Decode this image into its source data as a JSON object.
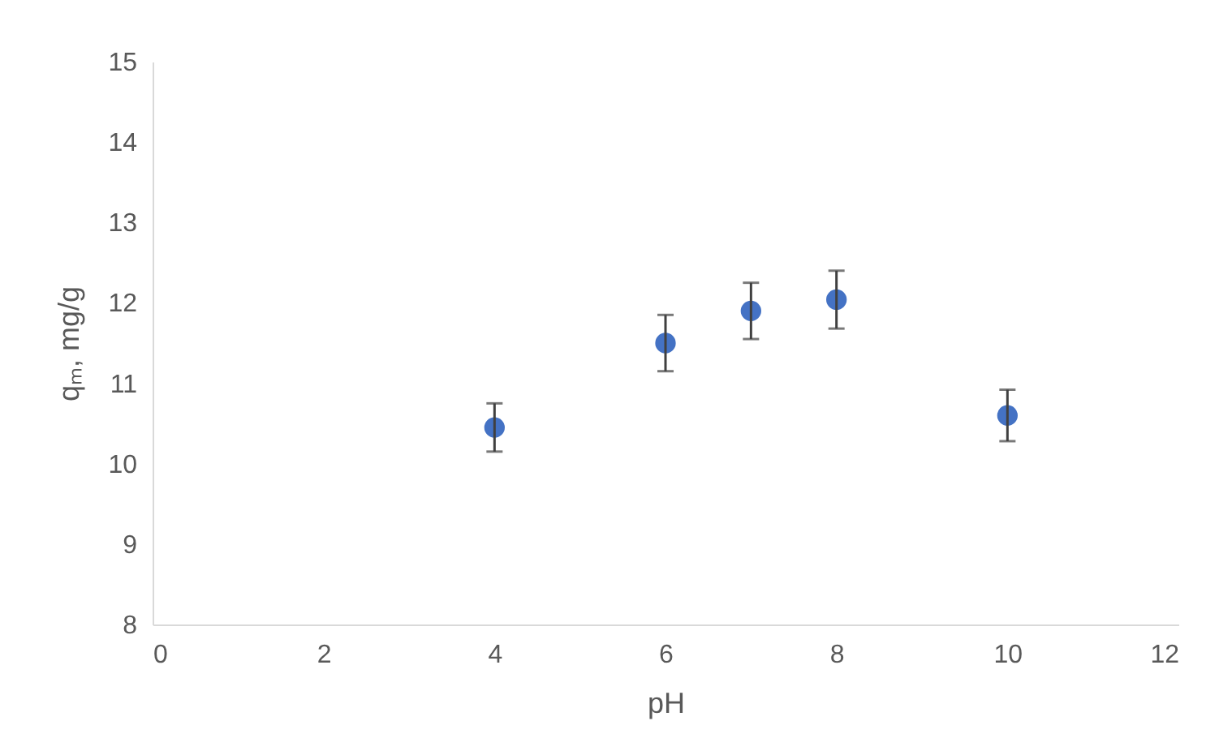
{
  "chart_data": {
    "type": "scatter",
    "xlabel": "pH",
    "ylabel": "qₘ, mg/g",
    "x": [
      4,
      6,
      7,
      8,
      10
    ],
    "series": [
      {
        "color": "#4472c4",
        "values": [
          10.45,
          11.5,
          11.9,
          12.04,
          10.6
        ],
        "errors": [
          0.3,
          0.35,
          0.35,
          0.36,
          0.32
        ]
      }
    ],
    "xlim": [
      0,
      12
    ],
    "xticks": [
      0,
      2,
      4,
      6,
      8,
      10,
      12
    ],
    "ylim": [
      8,
      15
    ],
    "yticks": [
      8,
      9,
      10,
      11,
      12,
      13,
      14,
      15
    ],
    "grid": false,
    "legend": false,
    "marker": "circle"
  }
}
